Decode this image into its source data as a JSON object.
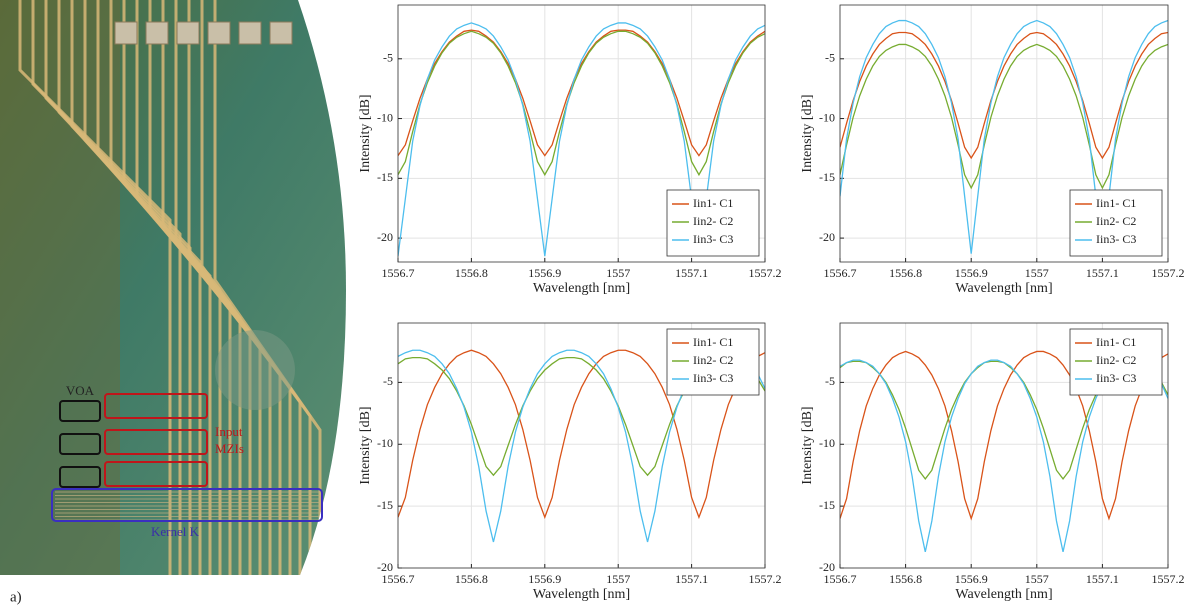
{
  "panel_label": "a)",
  "photo": {
    "voa": "VOA",
    "input_mzis": [
      "Input",
      "MZIs"
    ],
    "kernel": "Kernel K"
  },
  "chart_data": [
    {
      "type": "line",
      "xlabel": "Wavelength [nm]",
      "ylabel": "Intensity [dB]",
      "x": [
        1556.7,
        1556.71,
        1556.72,
        1556.73,
        1556.74,
        1556.75,
        1556.76,
        1556.77,
        1556.78,
        1556.79,
        1556.8,
        1556.81,
        1556.82,
        1556.83,
        1556.84,
        1556.85,
        1556.86,
        1556.87,
        1556.88,
        1556.89,
        1556.9,
        1556.91,
        1556.92,
        1556.93,
        1556.94,
        1556.95,
        1556.96,
        1556.97,
        1556.98,
        1556.99,
        1557,
        1557.01,
        1557.02,
        1557.03,
        1557.04,
        1557.05,
        1557.06,
        1557.07,
        1557.08,
        1557.09,
        1557.1,
        1557.11,
        1557.12,
        1557.13,
        1557.14,
        1557.15,
        1557.16,
        1557.17,
        1557.18,
        1557.19,
        1557.2
      ],
      "series": [
        {
          "name": "Iin1- C1",
          "color": "#D95319",
          "values": [
            -13.1,
            -12.2,
            -10.2,
            -8.3,
            -6.7,
            -5.4,
            -4.4,
            -3.6,
            -3.1,
            -2.7,
            -2.6,
            -2.7,
            -3.1,
            -3.6,
            -4.4,
            -5.4,
            -6.7,
            -8.3,
            -10.2,
            -12.2,
            -13.1,
            -12.2,
            -10.2,
            -8.3,
            -6.7,
            -5.4,
            -4.4,
            -3.6,
            -3.1,
            -2.7,
            -2.6,
            -2.6,
            -2.7,
            -3.1,
            -3.6,
            -4.4,
            -5.4,
            -6.7,
            -8.3,
            -10.2,
            -12.2,
            -13.1,
            -12.2,
            -10.2,
            -8.3,
            -6.7,
            -5.4,
            -4.4,
            -3.6,
            -3.1,
            -2.7
          ]
        },
        {
          "name": "Iin2- C2",
          "color": "#77AC30",
          "values": [
            -14.7,
            -13.6,
            -11.1,
            -8.8,
            -7,
            -5.6,
            -4.5,
            -3.7,
            -3.2,
            -2.9,
            -2.7,
            -2.9,
            -3.2,
            -3.7,
            -4.5,
            -5.6,
            -7,
            -8.8,
            -11.1,
            -13.6,
            -14.7,
            -13.6,
            -11.1,
            -8.8,
            -7,
            -5.6,
            -4.5,
            -3.7,
            -3.2,
            -2.9,
            -2.7,
            -2.7,
            -2.9,
            -3.2,
            -3.7,
            -4.5,
            -5.6,
            -7,
            -8.8,
            -11.1,
            -13.6,
            -14.7,
            -13.6,
            -11.1,
            -8.8,
            -7,
            -5.6,
            -4.5,
            -3.7,
            -3.2,
            -2.9
          ]
        },
        {
          "name": "Iin3- C3",
          "color": "#4DBEEE",
          "values": [
            -21.5,
            -16.7,
            -11.9,
            -8.9,
            -6.7,
            -5.1,
            -4,
            -3.1,
            -2.5,
            -2.2,
            -2,
            -2.2,
            -2.5,
            -3.1,
            -4,
            -5.1,
            -6.7,
            -8.9,
            -11.9,
            -16.7,
            -21.5,
            -16.7,
            -11.9,
            -8.9,
            -6.7,
            -5.1,
            -4,
            -3.1,
            -2.5,
            -2.2,
            -2,
            -2,
            -2.2,
            -2.5,
            -3.1,
            -4,
            -5.1,
            -6.7,
            -8.9,
            -11.9,
            -16.7,
            -21.5,
            -16.7,
            -11.9,
            -8.9,
            -6.7,
            -5.1,
            -4,
            -3.1,
            -2.5,
            -2.2
          ]
        }
      ],
      "xlim": [
        1556.7,
        1557.2
      ],
      "ylim": [
        -22,
        -0.5
      ],
      "xticks": [
        1556.7,
        1556.8,
        1556.9,
        1557,
        1557.1,
        1557.2
      ],
      "yticks": [
        -20,
        -15,
        -10,
        -5
      ],
      "grid": true,
      "legend": "lower right"
    },
    {
      "type": "line",
      "xlabel": "Wavelength [nm]",
      "ylabel": "Intensity [dB]",
      "x": [
        1556.7,
        1556.71,
        1556.72,
        1556.73,
        1556.74,
        1556.75,
        1556.76,
        1556.77,
        1556.78,
        1556.79,
        1556.8,
        1556.81,
        1556.82,
        1556.83,
        1556.84,
        1556.85,
        1556.86,
        1556.87,
        1556.88,
        1556.89,
        1556.9,
        1556.91,
        1556.92,
        1556.93,
        1556.94,
        1556.95,
        1556.96,
        1556.97,
        1556.98,
        1556.99,
        1557,
        1557.01,
        1557.02,
        1557.03,
        1557.04,
        1557.05,
        1557.06,
        1557.07,
        1557.08,
        1557.09,
        1557.1,
        1557.11,
        1557.12,
        1557.13,
        1557.14,
        1557.15,
        1557.16,
        1557.17,
        1557.18,
        1557.19,
        1557.2
      ],
      "series": [
        {
          "name": "Iin1- C1",
          "color": "#D95319",
          "values": [
            -12.4,
            -10.4,
            -8.5,
            -6.9,
            -5.6,
            -4.6,
            -3.8,
            -3.3,
            -2.9,
            -2.8,
            -2.8,
            -2.9,
            -3.3,
            -3.8,
            -4.6,
            -5.6,
            -6.9,
            -8.5,
            -10.4,
            -12.4,
            -13.3,
            -12.4,
            -10.4,
            -8.5,
            -6.9,
            -5.6,
            -4.6,
            -3.8,
            -3.3,
            -2.9,
            -2.8,
            -2.9,
            -3.3,
            -3.8,
            -4.6,
            -5.6,
            -6.9,
            -8.5,
            -10.4,
            -12.4,
            -13.3,
            -12.4,
            -10.4,
            -8.5,
            -6.9,
            -5.6,
            -4.6,
            -3.8,
            -3.3,
            -2.9,
            -2.8
          ]
        },
        {
          "name": "Iin2- C2",
          "color": "#77AC30",
          "values": [
            -14.7,
            -12.2,
            -9.9,
            -8.1,
            -6.7,
            -5.6,
            -4.8,
            -4.3,
            -4,
            -3.8,
            -3.8,
            -4,
            -4.3,
            -4.8,
            -5.6,
            -6.7,
            -8.1,
            -9.9,
            -12.2,
            -14.7,
            -15.8,
            -14.7,
            -12.2,
            -9.9,
            -8.1,
            -6.7,
            -5.6,
            -4.8,
            -4.3,
            -4,
            -3.8,
            -4,
            -4.3,
            -4.8,
            -5.6,
            -6.7,
            -8.1,
            -9.9,
            -12.2,
            -14.7,
            -15.8,
            -14.7,
            -12.2,
            -9.9,
            -8.1,
            -6.7,
            -5.6,
            -4.8,
            -4.3,
            -4,
            -3.8
          ]
        },
        {
          "name": "Iin3- C3",
          "color": "#4DBEEE",
          "values": [
            -16.5,
            -11.7,
            -8.7,
            -6.5,
            -4.9,
            -3.8,
            -2.9,
            -2.3,
            -2,
            -1.8,
            -1.8,
            -2,
            -2.3,
            -2.9,
            -3.8,
            -4.9,
            -6.5,
            -8.7,
            -11.7,
            -16.5,
            -21.3,
            -16.5,
            -11.7,
            -8.7,
            -6.5,
            -4.9,
            -3.8,
            -2.9,
            -2.3,
            -2,
            -1.8,
            -2,
            -2.3,
            -2.9,
            -3.8,
            -4.9,
            -6.5,
            -8.7,
            -11.7,
            -16.5,
            -21.3,
            -16.5,
            -11.7,
            -8.7,
            -6.5,
            -4.9,
            -3.8,
            -2.9,
            -2.3,
            -2,
            -1.8
          ]
        }
      ],
      "xlim": [
        1556.7,
        1557.2
      ],
      "ylim": [
        -22,
        -0.5
      ],
      "xticks": [
        1556.7,
        1556.8,
        1556.9,
        1557,
        1557.1,
        1557.2
      ],
      "yticks": [
        -20,
        -15,
        -10,
        -5
      ],
      "grid": true,
      "legend": "lower right"
    },
    {
      "type": "line",
      "xlabel": "Wavelength [nm]",
      "ylabel": "Intensity [dB]",
      "x": [
        1556.7,
        1556.71,
        1556.72,
        1556.73,
        1556.74,
        1556.75,
        1556.76,
        1556.77,
        1556.78,
        1556.79,
        1556.8,
        1556.81,
        1556.82,
        1556.83,
        1556.84,
        1556.85,
        1556.86,
        1556.87,
        1556.88,
        1556.89,
        1556.9,
        1556.91,
        1556.92,
        1556.93,
        1556.94,
        1556.95,
        1556.96,
        1556.97,
        1556.98,
        1556.99,
        1557,
        1557.01,
        1557.02,
        1557.03,
        1557.04,
        1557.05,
        1557.06,
        1557.07,
        1557.08,
        1557.09,
        1557.1,
        1557.11,
        1557.12,
        1557.13,
        1557.14,
        1557.15,
        1557.16,
        1557.17,
        1557.18,
        1557.19,
        1557.2
      ],
      "series": [
        {
          "name": "Iin1- C1",
          "color": "#D95319",
          "values": [
            -15.9,
            -14.3,
            -11.3,
            -8.8,
            -6.8,
            -5.4,
            -4.3,
            -3.5,
            -2.9,
            -2.6,
            -2.4,
            -2.6,
            -2.9,
            -3.5,
            -4.3,
            -5.4,
            -6.8,
            -8.8,
            -11.3,
            -14.3,
            -15.9,
            -14.3,
            -11.3,
            -8.8,
            -6.8,
            -5.4,
            -4.3,
            -3.5,
            -2.9,
            -2.6,
            -2.4,
            -2.4,
            -2.6,
            -2.9,
            -3.5,
            -4.3,
            -5.4,
            -6.8,
            -8.8,
            -11.3,
            -14.3,
            -15.9,
            -14.3,
            -11.3,
            -8.8,
            -6.8,
            -5.4,
            -4.3,
            -3.5,
            -2.9,
            -2.6
          ]
        },
        {
          "name": "Iin2- C2",
          "color": "#77AC30",
          "values": [
            -3.5,
            -3.1,
            -3,
            -3,
            -3.1,
            -3.5,
            -4,
            -4.7,
            -5.7,
            -6.9,
            -8.4,
            -10.1,
            -11.8,
            -12.5,
            -11.8,
            -10.1,
            -8.4,
            -6.9,
            -5.7,
            -4.7,
            -4,
            -3.5,
            -3.1,
            -3,
            -3,
            -3.1,
            -3.5,
            -4,
            -4.7,
            -5.7,
            -6.9,
            -8.4,
            -10.1,
            -11.8,
            -12.5,
            -11.8,
            -10.1,
            -8.4,
            -6.9,
            -5.7,
            -4.7,
            -4,
            -3.5,
            -3.1,
            -3,
            -3,
            -3.1,
            -3.5,
            -4,
            -4.7,
            -5.7
          ]
        },
        {
          "name": "Iin3- C3",
          "color": "#4DBEEE",
          "values": [
            -2.9,
            -2.6,
            -2.4,
            -2.4,
            -2.6,
            -2.9,
            -3.5,
            -4.3,
            -5.5,
            -7,
            -9,
            -11.8,
            -15.4,
            -17.9,
            -15.4,
            -11.8,
            -9,
            -7,
            -5.5,
            -4.3,
            -3.5,
            -2.9,
            -2.6,
            -2.4,
            -2.4,
            -2.6,
            -2.9,
            -3.5,
            -4.3,
            -5.5,
            -7,
            -9,
            -11.8,
            -15.4,
            -17.9,
            -15.4,
            -11.8,
            -9,
            -7,
            -5.5,
            -4.3,
            -3.5,
            -2.9,
            -2.6,
            -2.4,
            -2.4,
            -2.6,
            -2.9,
            -3.5,
            -4.3,
            -5.5
          ]
        }
      ],
      "xlim": [
        1556.7,
        1557.2
      ],
      "ylim": [
        -20,
        -0.2
      ],
      "xticks": [
        1556.7,
        1556.8,
        1556.9,
        1557,
        1557.1,
        1557.2
      ],
      "yticks": [
        -20,
        -15,
        -10,
        -5
      ],
      "grid": true,
      "legend": "upper right"
    },
    {
      "type": "line",
      "xlabel": "Wavelength [nm]",
      "ylabel": "Intensity [dB]",
      "x": [
        1556.7,
        1556.71,
        1556.72,
        1556.73,
        1556.74,
        1556.75,
        1556.76,
        1556.77,
        1556.78,
        1556.79,
        1556.8,
        1556.81,
        1556.82,
        1556.83,
        1556.84,
        1556.85,
        1556.86,
        1556.87,
        1556.88,
        1556.89,
        1556.9,
        1556.91,
        1556.92,
        1556.93,
        1556.94,
        1556.95,
        1556.96,
        1556.97,
        1556.98,
        1556.99,
        1557,
        1557.01,
        1557.02,
        1557.03,
        1557.04,
        1557.05,
        1557.06,
        1557.07,
        1557.08,
        1557.09,
        1557.1,
        1557.11,
        1557.12,
        1557.13,
        1557.14,
        1557.15,
        1557.16,
        1557.17,
        1557.18,
        1557.19,
        1557.2
      ],
      "series": [
        {
          "name": "Iin1- C1",
          "color": "#D95319",
          "values": [
            -16,
            -14.4,
            -11.4,
            -8.9,
            -6.9,
            -5.5,
            -4.4,
            -3.6,
            -3,
            -2.7,
            -2.5,
            -2.7,
            -3,
            -3.6,
            -4.4,
            -5.5,
            -6.9,
            -8.9,
            -11.4,
            -14.4,
            -16,
            -14.4,
            -11.4,
            -8.9,
            -6.9,
            -5.5,
            -4.4,
            -3.6,
            -3,
            -2.7,
            -2.5,
            -2.5,
            -2.7,
            -3,
            -3.6,
            -4.4,
            -5.5,
            -6.9,
            -8.9,
            -11.4,
            -14.4,
            -16,
            -14.4,
            -11.4,
            -8.9,
            -6.9,
            -5.5,
            -4.4,
            -3.6,
            -3,
            -2.7
          ]
        },
        {
          "name": "Iin2- C2",
          "color": "#77AC30",
          "values": [
            -3.8,
            -3.4,
            -3.3,
            -3.3,
            -3.4,
            -3.8,
            -4.3,
            -5,
            -6,
            -7.2,
            -8.7,
            -10.4,
            -12.1,
            -12.8,
            -12.1,
            -10.4,
            -8.7,
            -7.2,
            -6,
            -5,
            -4.3,
            -3.8,
            -3.4,
            -3.3,
            -3.3,
            -3.4,
            -3.8,
            -4.3,
            -5,
            -6,
            -7.2,
            -8.7,
            -10.4,
            -12.1,
            -12.8,
            -12.1,
            -10.4,
            -8.7,
            -7.2,
            -6,
            -5,
            -4.3,
            -3.8,
            -3.4,
            -3.3,
            -3.3,
            -3.4,
            -3.8,
            -4.3,
            -5,
            -6
          ]
        },
        {
          "name": "Iin3- C3",
          "color": "#4DBEEE",
          "values": [
            -3.7,
            -3.4,
            -3.2,
            -3.2,
            -3.4,
            -3.7,
            -4.3,
            -5.1,
            -6.3,
            -7.8,
            -9.8,
            -12.6,
            -16.2,
            -18.7,
            -16.2,
            -12.6,
            -9.8,
            -7.8,
            -6.3,
            -5.1,
            -4.3,
            -3.7,
            -3.4,
            -3.2,
            -3.2,
            -3.4,
            -3.7,
            -4.3,
            -5.1,
            -6.3,
            -7.8,
            -9.8,
            -12.6,
            -16.2,
            -18.7,
            -16.2,
            -12.6,
            -9.8,
            -7.8,
            -6.3,
            -5.1,
            -4.3,
            -3.7,
            -3.4,
            -3.2,
            -3.2,
            -3.4,
            -3.7,
            -4.3,
            -5.1,
            -6.3
          ]
        }
      ],
      "xlim": [
        1556.7,
        1557.2
      ],
      "ylim": [
        -20,
        -0.2
      ],
      "xticks": [
        1556.7,
        1556.8,
        1556.9,
        1557,
        1557.1,
        1557.2
      ],
      "yticks": [
        -20,
        -15,
        -10,
        -5
      ],
      "grid": true,
      "legend": "upper right"
    }
  ]
}
